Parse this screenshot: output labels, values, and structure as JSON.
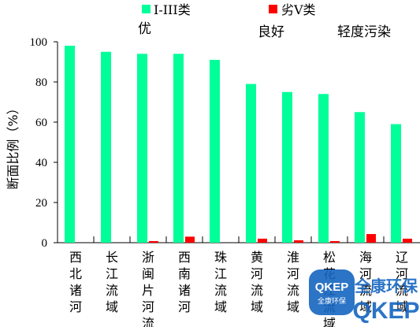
{
  "chart_data": {
    "type": "bar",
    "ylabel": "断面比例（%）",
    "ylim": [
      0,
      100
    ],
    "yticks": [
      0,
      20,
      40,
      60,
      80,
      100
    ],
    "grid": false,
    "legend_position": "top",
    "categories": [
      "西北诸河",
      "长江流域",
      "浙闽片河流",
      "西南诸河",
      "珠江流域",
      "黄河流域",
      "淮河流域",
      "松花江流域",
      "海河流域",
      "辽河流域"
    ],
    "series": [
      {
        "name": "I-III类",
        "color": "#00ff99",
        "values": [
          98,
          95,
          94,
          94,
          91,
          79,
          75,
          74,
          65,
          59
        ]
      },
      {
        "name": "劣V类",
        "color": "#ff0000",
        "values": [
          0,
          0,
          0.8,
          3,
          0,
          2,
          1.2,
          0.8,
          4.3,
          2
        ]
      }
    ],
    "annotations": [
      "优",
      "良好",
      "轻度污染"
    ]
  },
  "watermark": {
    "badge_line1": "QKEP",
    "badge_line2": "全康环保",
    "text_cn": "全康环保",
    "text_en": "QKEP",
    "color": "#1565c0"
  }
}
